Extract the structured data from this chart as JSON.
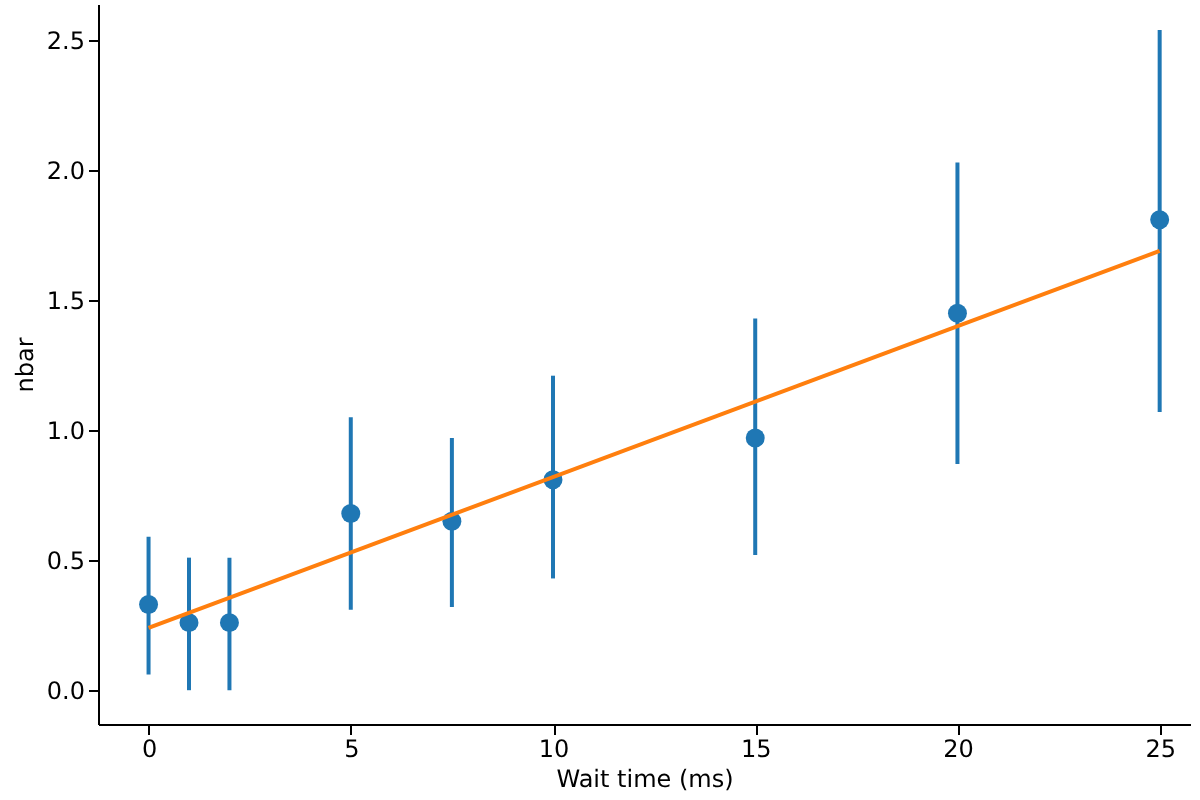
{
  "chart_data": {
    "type": "scatter",
    "xlabel": "Wait time (ms)",
    "ylabel": "nbar",
    "xlim": [
      -1.25,
      25.75
    ],
    "ylim": [
      -0.13,
      2.64
    ],
    "xticks": [
      0,
      5,
      10,
      15,
      20,
      25
    ],
    "yticks": [
      {
        "value": 0,
        "label": "0.0"
      },
      0.5,
      {
        "value": 1,
        "label": "1.0"
      },
      1.5,
      {
        "value": 2,
        "label": "2.0"
      },
      2.5
    ],
    "grid": false,
    "series": [
      {
        "color": "#1f77b4",
        "marker": "circle",
        "x": [
          0,
          1,
          2,
          5,
          7.5,
          10,
          15,
          20,
          25
        ],
        "values": [
          0.33,
          0.26,
          0.26,
          0.68,
          0.65,
          0.81,
          0.97,
          1.45,
          1.81
        ],
        "errors": [
          [
            0.06,
            0.59
          ],
          [
            0.0,
            0.51
          ],
          [
            0.0,
            0.51
          ],
          [
            0.31,
            1.05
          ],
          [
            0.32,
            0.97
          ],
          [
            0.43,
            1.21
          ],
          [
            0.52,
            1.43
          ],
          [
            0.87,
            2.03
          ],
          [
            1.07,
            2.54
          ]
        ]
      },
      {
        "type": "line",
        "color": "#ff7f0e",
        "marker": "none",
        "line_style": "solid",
        "x": [
          0,
          25
        ],
        "values": [
          0.24,
          1.69
        ]
      }
    ]
  }
}
